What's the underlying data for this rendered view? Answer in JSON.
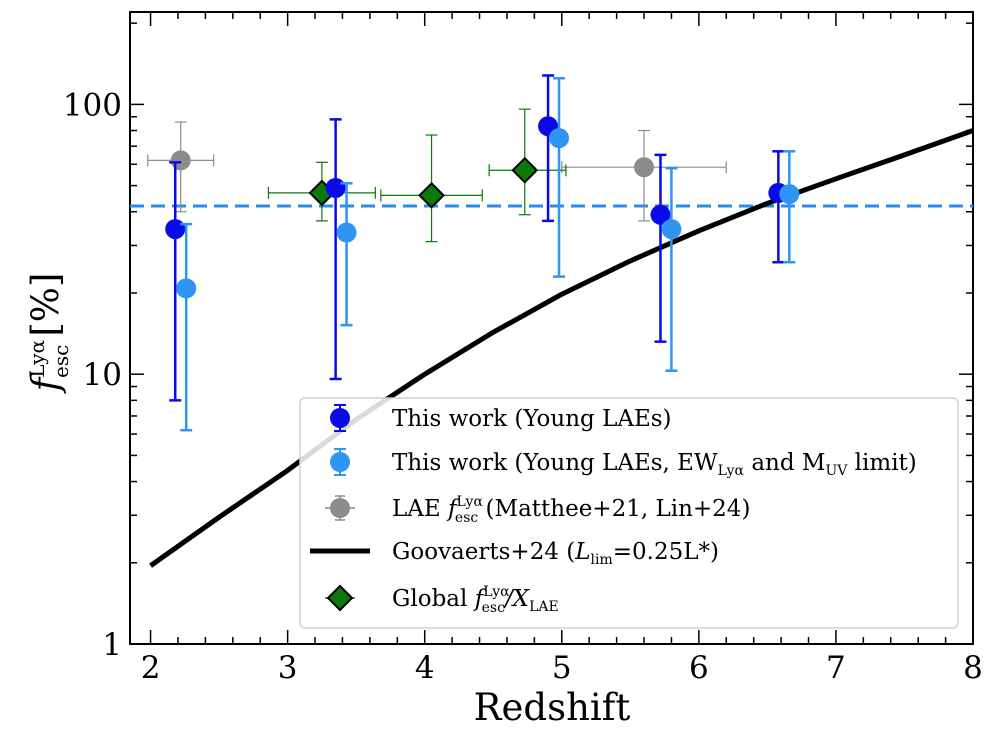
{
  "chart_data": {
    "type": "scatter",
    "xlabel": "Redshift",
    "ylabel_main": "f",
    "ylabel_sup": "Lyα",
    "ylabel_sub": "esc",
    "ylabel_unit": "[%]",
    "xlim": [
      1.85,
      8.0
    ],
    "ylim": [
      1,
      220
    ],
    "yscale": "log",
    "x_ticks": [
      2,
      3,
      4,
      5,
      6,
      7,
      8
    ],
    "x_tick_labels": [
      "2",
      "3",
      "4",
      "5",
      "6",
      "7",
      "8"
    ],
    "y_ticks": [
      1,
      10,
      100
    ],
    "y_tick_labels": [
      "1",
      "10",
      "100"
    ],
    "reference_line": {
      "y": 42,
      "style": "dashed",
      "color": "#2a8ce6"
    },
    "series": [
      {
        "name": "This work (Young LAEs)",
        "color": "#0a0ae8",
        "marker": "circle",
        "points": [
          {
            "x": 2.18,
            "y": 34.5,
            "ylo": 8.0,
            "yhi": 61.0
          },
          {
            "x": 3.35,
            "y": 49.0,
            "ylo": 9.6,
            "yhi": 88.0
          },
          {
            "x": 4.9,
            "y": 83.0,
            "ylo": 37.0,
            "yhi": 128.0
          },
          {
            "x": 5.72,
            "y": 39.0,
            "ylo": 13.2,
            "yhi": 65.0
          },
          {
            "x": 6.58,
            "y": 47.0,
            "ylo": 26.0,
            "yhi": 67.0
          }
        ]
      },
      {
        "name": "This work (Young LAEs, EW",
        "legend_sub_a": "Lyα",
        "legend_mid": " and M",
        "legend_sub_b": "UV",
        "legend_tail": " limit)",
        "color": "#2e96f2",
        "marker": "circle",
        "points": [
          {
            "x": 2.26,
            "y": 20.8,
            "ylo": 6.2,
            "yhi": 36.0
          },
          {
            "x": 3.43,
            "y": 33.5,
            "ylo": 15.2,
            "yhi": 51.0
          },
          {
            "x": 4.98,
            "y": 75.0,
            "ylo": 23.0,
            "yhi": 125.0
          },
          {
            "x": 5.8,
            "y": 34.5,
            "ylo": 10.3,
            "yhi": 58.0
          },
          {
            "x": 6.66,
            "y": 46.5,
            "ylo": 26.0,
            "yhi": 67.0
          }
        ]
      },
      {
        "name_prefix": "LAE ",
        "name_main": "f",
        "name_sup": "Lyα",
        "name_sub": "esc",
        "name_tail": " (Matthee+21, Lin+24)",
        "color": "#8c8c8c",
        "marker": "circle",
        "points": [
          {
            "x": 2.22,
            "y": 62.0,
            "ylo": 40.0,
            "yhi": 86.0,
            "xlo": 1.98,
            "xhi": 2.46
          },
          {
            "x": 5.6,
            "y": 58.5,
            "ylo": 37.0,
            "yhi": 80.0,
            "xlo": 5.0,
            "xhi": 6.2
          }
        ]
      },
      {
        "name_prefix": "Global ",
        "name_main": "f",
        "name_sup": "Lyα",
        "name_sub": "esc",
        "name_slash": "/X",
        "name_sub2": "LAE",
        "color": "#0a7a0a",
        "marker": "diamond",
        "points": [
          {
            "x": 3.25,
            "y": 47.0,
            "ylo": 37.0,
            "yhi": 61.0,
            "xlo": 2.86,
            "xhi": 3.64
          },
          {
            "x": 4.05,
            "y": 46.0,
            "ylo": 31.0,
            "yhi": 77.0,
            "xlo": 3.68,
            "xhi": 4.42
          },
          {
            "x": 4.73,
            "y": 57.0,
            "ylo": 39.0,
            "yhi": 96.0,
            "xlo": 4.47,
            "xhi": 5.03
          }
        ]
      }
    ],
    "curve": {
      "name_prefix": "Goovaerts+24 (",
      "name_main": "L",
      "name_sub": "lim",
      "name_tail": "=0.25L*)",
      "color": "#000000",
      "x": [
        2.0,
        2.5,
        3.0,
        3.5,
        4.0,
        4.5,
        5.0,
        5.5,
        6.0,
        6.5,
        7.0,
        7.5,
        8.0
      ],
      "y": [
        1.95,
        2.95,
        4.4,
        6.8,
        10.0,
        14.3,
        19.8,
        26.3,
        34.0,
        43.0,
        53.0,
        65.0,
        80.0
      ]
    }
  }
}
